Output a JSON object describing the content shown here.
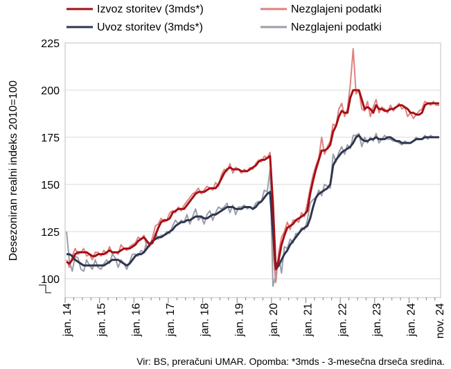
{
  "chart_data": {
    "type": "line",
    "ylabel": "Desezoniran realni indeks 2010=100",
    "ylim": [
      90,
      225
    ],
    "yticks": [
      100,
      125,
      150,
      175,
      200,
      225
    ],
    "x_tick_labels": [
      "jan. 14",
      "jan. 15",
      "jan. 16",
      "jan. 17",
      "jan. 18",
      "jan. 19",
      "jan. 20",
      "jan. 21",
      "jan. 22",
      "jan. 23",
      "jan. 24",
      "nov. 24"
    ],
    "x_tick_index": [
      0,
      12,
      24,
      36,
      48,
      60,
      72,
      84,
      96,
      108,
      120,
      130
    ],
    "grid": "horizontal",
    "legend_position": "top",
    "note": "Vir: BS, preračuni UMAR. Opomba: *3mds - 3-mesečna drseča sredina.",
    "colors": {
      "izvoz_3mds": "#a50f15",
      "izvoz_raw": "#e08080",
      "uvoz_3mds": "#2e3650",
      "uvoz_raw": "#9a9ea8"
    },
    "series": [
      {
        "name": "Izvoz storitev (3mds*)",
        "key": "izvoz_3mds",
        "width": 3,
        "values": [
          109,
          108,
          110,
          113,
          114,
          114,
          114,
          114,
          113,
          112,
          112,
          113,
          113,
          113,
          114,
          115,
          114,
          114,
          114,
          115,
          116,
          116,
          116,
          117,
          118,
          120,
          121,
          122,
          120,
          118,
          119,
          123,
          127,
          130,
          131,
          131,
          132,
          135,
          136,
          137,
          137,
          137,
          139,
          141,
          143,
          145,
          146,
          146,
          146,
          147,
          148,
          148,
          148,
          150,
          153,
          156,
          158,
          159,
          158,
          158,
          158,
          157,
          157,
          157,
          158,
          159,
          160,
          162,
          163,
          163,
          164,
          165,
          140,
          105,
          110,
          118,
          123,
          127,
          128,
          129,
          131,
          132,
          133,
          134,
          136,
          145,
          152,
          158,
          163,
          168,
          168,
          169,
          171,
          178,
          181,
          186,
          189,
          188,
          188,
          196,
          200,
          200,
          200,
          195,
          190,
          191,
          190,
          188,
          192,
          190,
          190,
          189,
          189,
          190,
          190,
          191,
          192,
          192,
          191,
          190,
          188,
          188,
          187,
          187,
          188,
          192,
          193,
          193,
          193,
          193,
          193
        ]
      },
      {
        "name": "Nezglajeni podatki",
        "key": "izvoz_raw",
        "width": 2,
        "values": [
          110,
          106,
          112,
          116,
          113,
          114,
          116,
          112,
          113,
          110,
          114,
          114,
          112,
          115,
          113,
          117,
          113,
          114,
          113,
          118,
          116,
          115,
          117,
          118,
          119,
          122,
          121,
          123,
          117,
          117,
          122,
          128,
          129,
          132,
          130,
          131,
          135,
          136,
          135,
          138,
          136,
          139,
          141,
          143,
          145,
          146,
          148,
          145,
          147,
          149,
          148,
          147,
          151,
          149,
          155,
          158,
          157,
          161,
          156,
          159,
          158,
          156,
          158,
          157,
          159,
          158,
          161,
          163,
          162,
          165,
          164,
          167,
          115,
          98,
          114,
          122,
          125,
          130,
          126,
          131,
          131,
          130,
          135,
          133,
          140,
          148,
          155,
          160,
          164,
          175,
          166,
          170,
          173,
          182,
          181,
          190,
          193,
          186,
          190,
          203,
          222,
          198,
          200,
          190,
          189,
          194,
          186,
          191,
          195,
          188,
          191,
          190,
          188,
          192,
          189,
          191,
          193,
          190,
          191,
          186,
          188,
          185,
          187,
          189,
          190,
          194,
          193,
          192,
          194,
          192,
          192
        ]
      },
      {
        "name": "Uvoz storitev (3mds*)",
        "key": "uvoz_3mds",
        "width": 3,
        "values": [
          113,
          113,
          112,
          110,
          109,
          108,
          107,
          107,
          107,
          107,
          107,
          107,
          107,
          107,
          108,
          109,
          110,
          110,
          110,
          109,
          108,
          107,
          108,
          110,
          112,
          113,
          113,
          114,
          116,
          118,
          120,
          121,
          122,
          122,
          123,
          124,
          125,
          126,
          128,
          129,
          130,
          130,
          131,
          131,
          132,
          133,
          133,
          133,
          132,
          132,
          133,
          134,
          134,
          135,
          136,
          137,
          138,
          138,
          138,
          137,
          137,
          137,
          138,
          138,
          138,
          137,
          138,
          140,
          141,
          143,
          145,
          146,
          125,
          105,
          107,
          110,
          113,
          115,
          118,
          120,
          122,
          124,
          126,
          127,
          128,
          132,
          138,
          143,
          145,
          146,
          147,
          148,
          150,
          160,
          163,
          165,
          167,
          168,
          169,
          170,
          172,
          175,
          176,
          174,
          173,
          173,
          174,
          174,
          175,
          174,
          174,
          174,
          175,
          175,
          174,
          173,
          173,
          172,
          172,
          172,
          172,
          173,
          174,
          174,
          174,
          175,
          175,
          175,
          175,
          175,
          175
        ]
      },
      {
        "name": "Nezglajeni podatki",
        "key": "uvoz_raw",
        "width": 2,
        "values": [
          125,
          109,
          104,
          112,
          111,
          105,
          104,
          110,
          107,
          105,
          110,
          106,
          105,
          108,
          110,
          108,
          113,
          111,
          106,
          110,
          108,
          105,
          109,
          113,
          113,
          112,
          115,
          114,
          120,
          119,
          119,
          124,
          121,
          123,
          123,
          125,
          124,
          128,
          131,
          129,
          131,
          130,
          134,
          129,
          133,
          137,
          131,
          133,
          129,
          134,
          136,
          131,
          135,
          138,
          137,
          138,
          140,
          135,
          139,
          134,
          138,
          138,
          139,
          137,
          138,
          137,
          140,
          141,
          141,
          147,
          146,
          158,
          96,
          102,
          112,
          103,
          117,
          116,
          121,
          119,
          124,
          124,
          127,
          126,
          131,
          140,
          142,
          143,
          147,
          144,
          150,
          149,
          148,
          166,
          162,
          167,
          170,
          166,
          171,
          169,
          176,
          176,
          177,
          170,
          175,
          172,
          175,
          173,
          177,
          172,
          174,
          176,
          174,
          174,
          173,
          173,
          172,
          171,
          173,
          172,
          172,
          173,
          175,
          174,
          174,
          176,
          174,
          176,
          175,
          175,
          175
        ]
      }
    ]
  }
}
